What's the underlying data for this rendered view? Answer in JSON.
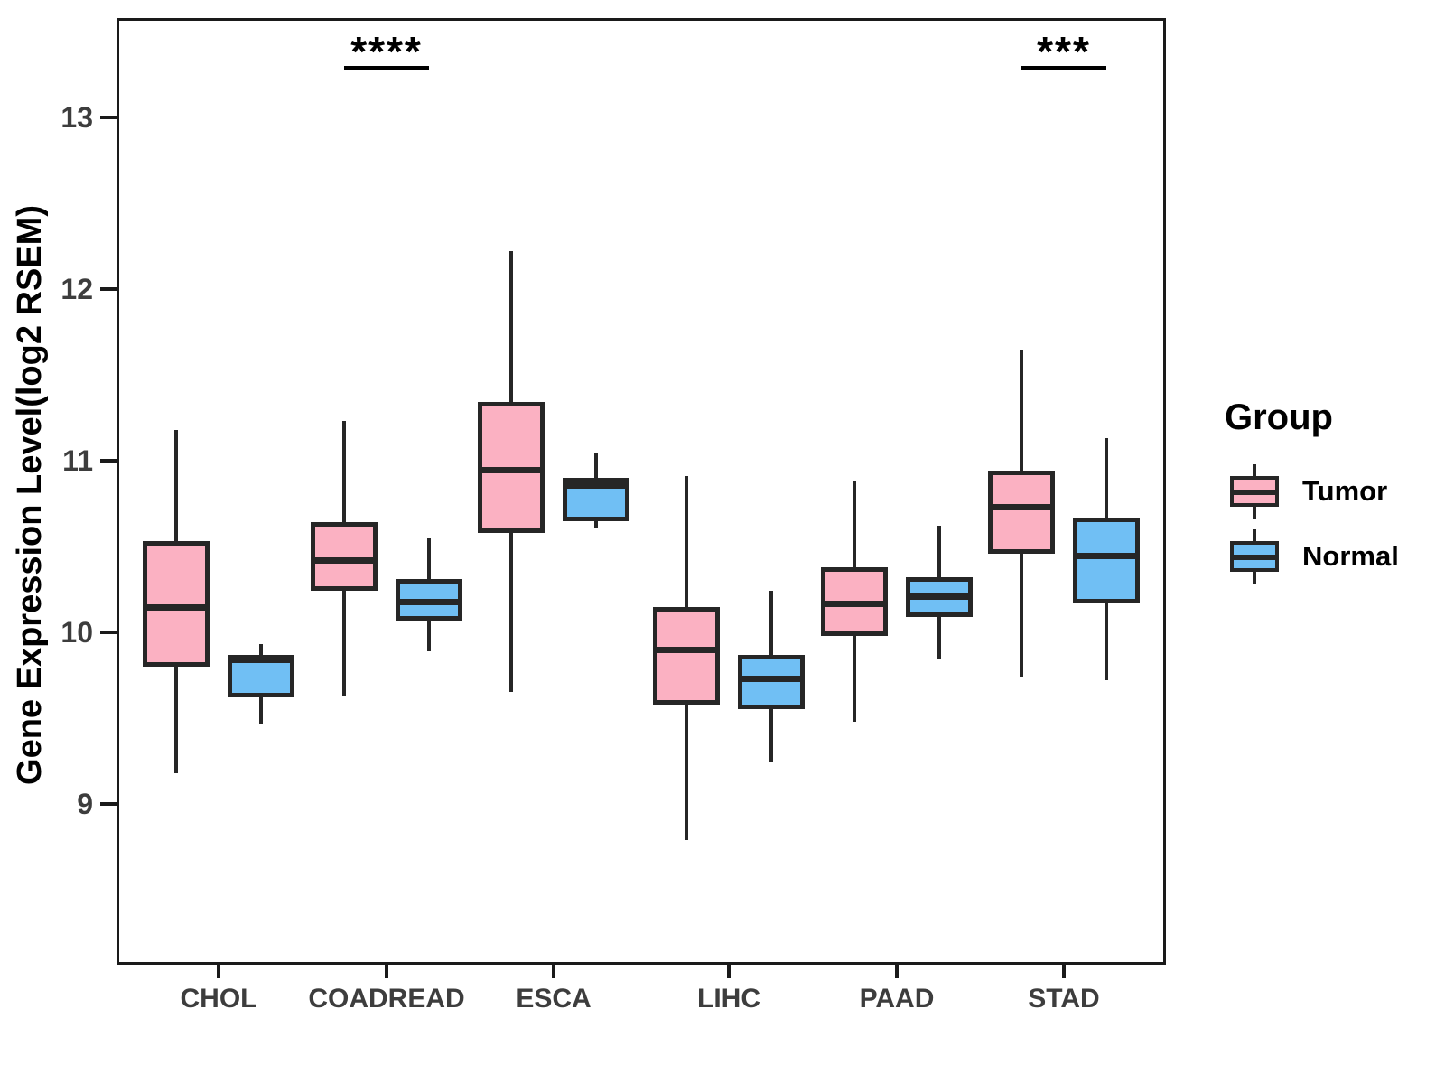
{
  "figure": {
    "y_axis_title": "Gene Expression Level(log2 RSEM)"
  },
  "legend": {
    "title": "Group",
    "items": [
      {
        "label": "Tumor",
        "color": "#FBB1C2"
      },
      {
        "label": "Normal",
        "color": "#70BFF4"
      }
    ]
  },
  "colors": {
    "tumor_fill": "#FBB1C2",
    "normal_fill": "#70BFF4",
    "box_stroke": "#262626",
    "panel_border": "#1a1a1a",
    "axis_text": "#3d3d3d",
    "annotation": "#000000"
  },
  "chart_data": {
    "type": "boxplot",
    "title": "",
    "xlabel": "",
    "ylabel": "Gene Expression Level(log2 RSEM)",
    "ylim": [
      8.06,
      13.58
    ],
    "y_ticks": [
      9,
      10,
      11,
      12,
      13
    ],
    "grid": false,
    "legend_position": "right",
    "categories": [
      "CHOL",
      "COADREAD",
      "ESCA",
      "LIHC",
      "PAAD",
      "STAD"
    ],
    "series": [
      {
        "name": "Tumor",
        "fill": "#FBB1C2",
        "boxes": [
          {
            "min": 9.18,
            "q1": 9.8,
            "median": 10.15,
            "q3": 10.53,
            "max": 11.18
          },
          {
            "min": 9.63,
            "q1": 10.24,
            "median": 10.42,
            "q3": 10.64,
            "max": 11.23
          },
          {
            "min": 9.65,
            "q1": 10.58,
            "median": 10.95,
            "q3": 11.34,
            "max": 12.22
          },
          {
            "min": 8.79,
            "q1": 9.58,
            "median": 9.9,
            "q3": 10.15,
            "max": 10.91
          },
          {
            "min": 9.48,
            "q1": 9.98,
            "median": 10.17,
            "q3": 10.38,
            "max": 10.88
          },
          {
            "min": 9.74,
            "q1": 10.46,
            "median": 10.73,
            "q3": 10.94,
            "max": 11.64
          }
        ]
      },
      {
        "name": "Normal",
        "fill": "#70BFF4",
        "boxes": [
          {
            "min": 9.47,
            "q1": 9.62,
            "median": 9.84,
            "q3": 9.87,
            "max": 9.93
          },
          {
            "min": 9.89,
            "q1": 10.07,
            "median": 10.18,
            "q3": 10.31,
            "max": 10.55
          },
          {
            "min": 10.61,
            "q1": 10.65,
            "median": 10.86,
            "q3": 10.9,
            "max": 11.05
          },
          {
            "min": 9.25,
            "q1": 9.55,
            "median": 9.73,
            "q3": 9.87,
            "max": 10.24
          },
          {
            "min": 9.84,
            "q1": 10.09,
            "median": 10.21,
            "q3": 10.32,
            "max": 10.62
          },
          {
            "min": 9.72,
            "q1": 10.17,
            "median": 10.45,
            "q3": 10.67,
            "max": 11.13
          }
        ]
      }
    ],
    "significance": [
      {
        "category": "COADREAD",
        "label": "****"
      },
      {
        "category": "STAD",
        "label": "***"
      }
    ]
  }
}
